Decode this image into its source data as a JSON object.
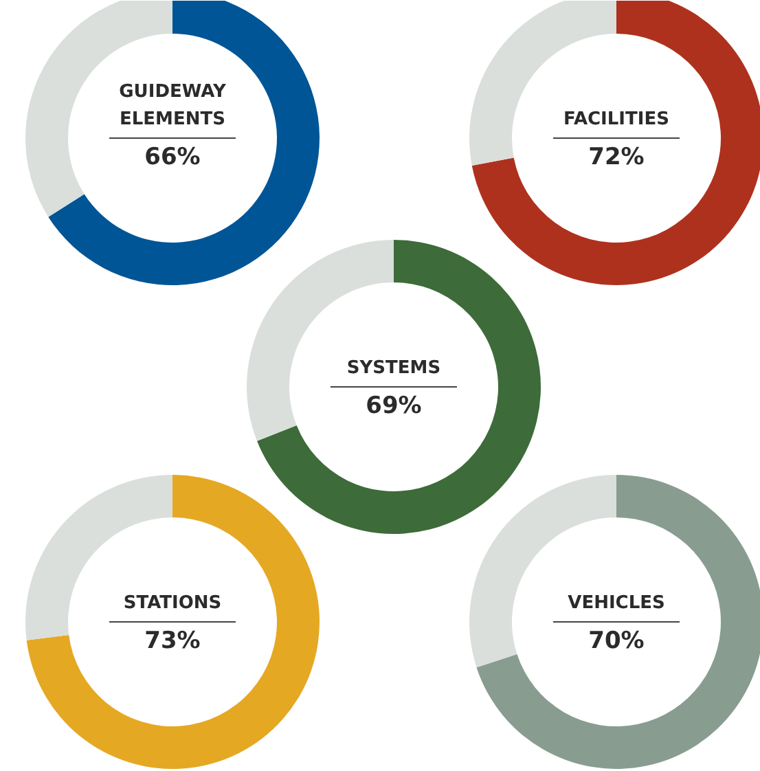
{
  "chart_data": [
    {
      "type": "donut",
      "categories": [
        "GUIDEWAY ELEMENTS",
        null
      ],
      "values": [
        66,
        34
      ],
      "colors": [
        "#005596",
        "#dadfdc"
      ],
      "value_labels": [
        "66%",
        null
      ]
    },
    {
      "type": "donut",
      "categories": [
        "FACILITIES",
        null
      ],
      "values": [
        72,
        28
      ],
      "colors": [
        "#ae311e",
        "#dadfdc"
      ],
      "value_labels": [
        "72%",
        null
      ]
    },
    {
      "type": "donut",
      "categories": [
        "SYSTEMS",
        null
      ],
      "values": [
        69,
        31
      ],
      "colors": [
        "#3d6b39",
        "#dadfdc"
      ],
      "value_labels": [
        "69%",
        null
      ]
    },
    {
      "type": "donut",
      "categories": [
        "STATIONS",
        null
      ],
      "values": [
        73,
        27
      ],
      "colors": [
        "#e5a823",
        "#dadfdc"
      ],
      "value_labels": [
        "73%",
        null
      ]
    },
    {
      "type": "donut",
      "categories": [
        "VEHICLES",
        null
      ],
      "values": [
        70,
        30
      ],
      "colors": [
        "#889d90",
        "#dadfdc"
      ],
      "value_labels": [
        "70%",
        null
      ]
    }
  ]
}
